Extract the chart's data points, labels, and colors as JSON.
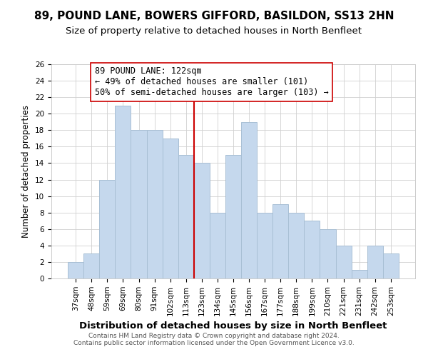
{
  "title": "89, POUND LANE, BOWERS GIFFORD, BASILDON, SS13 2HN",
  "subtitle": "Size of property relative to detached houses in North Benfleet",
  "xlabel": "Distribution of detached houses by size in North Benfleet",
  "ylabel": "Number of detached properties",
  "footer_line1": "Contains HM Land Registry data © Crown copyright and database right 2024.",
  "footer_line2": "Contains public sector information licensed under the Open Government Licence v3.0.",
  "bar_labels": [
    "37sqm",
    "48sqm",
    "59sqm",
    "69sqm",
    "80sqm",
    "91sqm",
    "102sqm",
    "113sqm",
    "123sqm",
    "134sqm",
    "145sqm",
    "156sqm",
    "167sqm",
    "177sqm",
    "188sqm",
    "199sqm",
    "210sqm",
    "221sqm",
    "231sqm",
    "242sqm",
    "253sqm"
  ],
  "bar_heights": [
    2,
    3,
    12,
    21,
    18,
    18,
    17,
    15,
    14,
    8,
    15,
    19,
    8,
    9,
    8,
    7,
    6,
    4,
    1,
    4,
    3
  ],
  "bar_color": "#c5d8ed",
  "bar_edge_color": "#a8bfd4",
  "vline_color": "#cc0000",
  "vline_index": 8,
  "annotation_line1": "89 POUND LANE: 122sqm",
  "annotation_line2": "← 49% of detached houses are smaller (101)",
  "annotation_line3": "50% of semi-detached houses are larger (103) →",
  "annotation_box_edgecolor": "#cc0000",
  "annotation_box_facecolor": "#ffffff",
  "ylim": [
    0,
    26
  ],
  "yticks": [
    0,
    2,
    4,
    6,
    8,
    10,
    12,
    14,
    16,
    18,
    20,
    22,
    24,
    26
  ],
  "background_color": "#ffffff",
  "grid_color": "#d0d0d0",
  "title_fontsize": 11,
  "subtitle_fontsize": 9.5,
  "xlabel_fontsize": 9.5,
  "ylabel_fontsize": 8.5,
  "tick_fontsize": 7.5,
  "annotation_fontsize": 8.5,
  "footer_fontsize": 6.5
}
